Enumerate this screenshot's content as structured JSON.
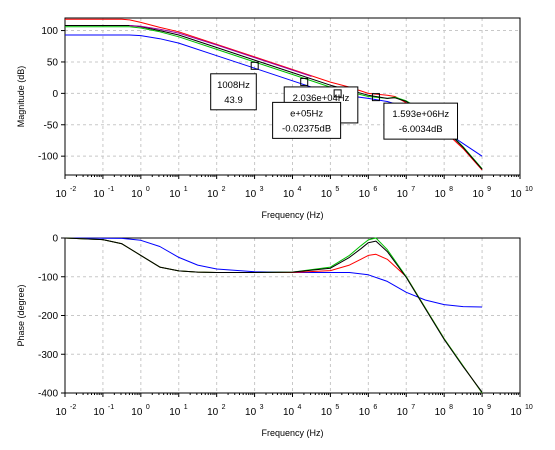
{
  "chart_data": [
    {
      "type": "line",
      "title": "",
      "xlabel": "Frequency (Hz)",
      "ylabel": "Magnitude (dB)",
      "xscale": "log",
      "xlim": [
        -2,
        10
      ],
      "ylim": [
        -130,
        120
      ],
      "xtick_exponents": [
        -2,
        -1,
        0,
        1,
        2,
        3,
        4,
        5,
        6,
        7,
        8,
        9,
        10
      ],
      "xtick_base": "10",
      "yticks": [
        "100",
        "50",
        "0",
        "-50",
        "-100"
      ],
      "ytick_values": [
        100,
        50,
        0,
        -50,
        -100
      ],
      "grid": true,
      "series": [
        {
          "color": "#0000ff",
          "x": [
            -2,
            -0.3,
            0,
            0.5,
            1,
            2,
            3,
            4,
            5,
            6,
            6.5,
            7,
            7.5,
            8,
            8.5,
            9
          ],
          "y": [
            93,
            93,
            92,
            87,
            80,
            60,
            40,
            20,
            0,
            -8,
            -13,
            -22,
            -40,
            -60,
            -80,
            -100
          ]
        },
        {
          "color": "#ff0000",
          "x": [
            -2,
            -0.5,
            -0.3,
            0,
            0.5,
            1,
            2,
            3,
            4,
            5,
            5.5,
            6,
            6.5,
            6.7,
            7,
            7.5,
            8,
            8.5,
            9
          ],
          "y": [
            118,
            118,
            117,
            113,
            105,
            98,
            78,
            58,
            38,
            18,
            10,
            0,
            -3,
            -5,
            -15,
            -35,
            -60,
            -88,
            -122
          ]
        },
        {
          "color": "#00c000",
          "x": [
            -2,
            -0.3,
            0,
            0.5,
            1,
            2,
            3,
            4,
            5,
            6,
            6.5,
            6.7,
            7,
            7.5,
            8,
            8.5,
            9
          ],
          "y": [
            106,
            106,
            104,
            98,
            90,
            70,
            50,
            30,
            10,
            -5,
            -8,
            -6,
            -12,
            -30,
            -55,
            -85,
            -120
          ]
        },
        {
          "color": "#000000",
          "x": [
            -2,
            -0.3,
            0,
            0.5,
            1,
            2,
            3,
            4,
            5,
            6,
            6.5,
            6.7,
            7,
            7.5,
            8,
            8.5,
            9
          ],
          "y": [
            108,
            108,
            106,
            100,
            93,
            73,
            53,
            33,
            13,
            -3,
            -8,
            -7,
            -13,
            -31,
            -56,
            -86,
            -121
          ]
        },
        {
          "color": "#a000a0",
          "x": [
            -0.3,
            0,
            0.5,
            1,
            2,
            3,
            4,
            4.5
          ],
          "y": [
            108,
            107,
            102,
            96,
            77,
            57,
            37,
            27
          ]
        }
      ],
      "datatips": [
        {
          "marker_x": 3.003,
          "marker_y": 43.9,
          "lines": [
            "1008Hz",
            "43.9"
          ]
        },
        {
          "marker_x": 4.309,
          "marker_y": 18.21,
          "lines": [
            "2.036e+04Hz",
            "18.21dB"
          ]
        },
        {
          "marker_x": 5.19,
          "marker_y": -0.02375,
          "lines": [
            "e+05Hz",
            "-0.02375dB"
          ]
        },
        {
          "marker_x": 6.2,
          "marker_y": -6.003,
          "lines": [
            "1.593e+06Hz",
            "-6.0034dB"
          ]
        }
      ]
    },
    {
      "type": "line",
      "title": "",
      "xlabel": "Frequency (Hz)",
      "ylabel": "Phase (degree)",
      "xscale": "log",
      "xlim": [
        -2,
        10
      ],
      "ylim": [
        -400,
        0
      ],
      "xtick_exponents": [
        -2,
        -1,
        0,
        1,
        2,
        3,
        4,
        5,
        6,
        7,
        8,
        9,
        10
      ],
      "xtick_base": "10",
      "yticks": [
        "0",
        "-100",
        "-200",
        "-300",
        "-400"
      ],
      "ytick_values": [
        0,
        -100,
        -200,
        -300,
        -400
      ],
      "grid": true,
      "series": [
        {
          "color": "#0000ff",
          "x": [
            -2,
            -0.5,
            0,
            0.5,
            1,
            1.5,
            2,
            3,
            4,
            5,
            5.5,
            6,
            6.5,
            7,
            7.5,
            8,
            8.5,
            9
          ],
          "y": [
            0,
            -1,
            -6,
            -22,
            -50,
            -70,
            -80,
            -87,
            -89,
            -89,
            -89,
            -95,
            -112,
            -140,
            -160,
            -172,
            -177,
            -178
          ]
        },
        {
          "color": "#ff0000",
          "x": [
            -2,
            -1,
            -0.5,
            0,
            0.5,
            1,
            1.5,
            2,
            3,
            4,
            5,
            5.5,
            5.8,
            6,
            6.2,
            6.5,
            7,
            7.5,
            8,
            8.5,
            9
          ],
          "y": [
            0,
            -4,
            -15,
            -45,
            -75,
            -85,
            -88,
            -89,
            -89,
            -89,
            -84,
            -70,
            -55,
            -45,
            -42,
            -55,
            -100,
            -180,
            -260,
            -330,
            -400
          ]
        },
        {
          "color": "#00c000",
          "x": [
            -2,
            -1,
            -0.5,
            0,
            0.5,
            1,
            1.5,
            2,
            3,
            4,
            5,
            5.5,
            5.8,
            6,
            6.2,
            6.5,
            7,
            7.5,
            8,
            8.5,
            9
          ],
          "y": [
            0,
            -4,
            -15,
            -45,
            -75,
            -85,
            -88,
            -89,
            -89,
            -88,
            -75,
            -45,
            -20,
            -5,
            0,
            -30,
            -100,
            -180,
            -260,
            -330,
            -400
          ]
        },
        {
          "color": "#000000",
          "x": [
            -2,
            -1,
            -0.5,
            0,
            0.5,
            1,
            1.5,
            2,
            3,
            4,
            5,
            5.5,
            5.8,
            6,
            6.2,
            6.5,
            7,
            7.5,
            8,
            8.5,
            9
          ],
          "y": [
            0,
            -4,
            -15,
            -45,
            -75,
            -85,
            -88,
            -89,
            -89,
            -88,
            -78,
            -50,
            -28,
            -12,
            -8,
            -35,
            -102,
            -182,
            -262,
            -332,
            -398
          ]
        }
      ]
    }
  ]
}
